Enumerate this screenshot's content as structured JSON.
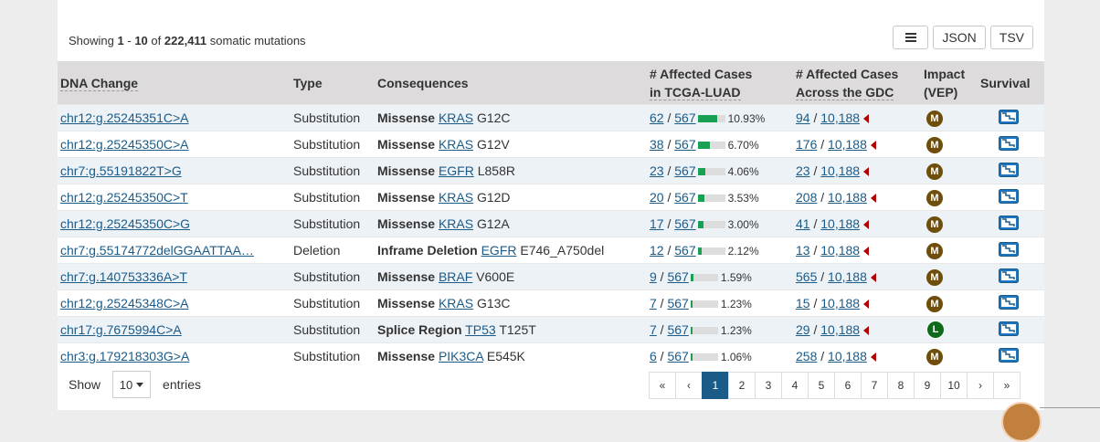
{
  "summary": {
    "prefix": "Showing",
    "from": "1",
    "dash": "-",
    "to": "10",
    "of": "of",
    "total": "222,411",
    "suffix": "somatic mutations"
  },
  "toolbar": {
    "json_label": "JSON",
    "tsv_label": "TSV",
    "menu_icon": "hamburger-icon"
  },
  "table": {
    "headers": {
      "dna_change": "DNA Change",
      "type": "Type",
      "consequences": "Consequences",
      "affected_project_1": "# Affected Cases",
      "affected_project_2": "in TCGA-LUAD",
      "affected_gdc_1": "# Affected Cases",
      "affected_gdc_2": "Across the GDC",
      "impact_1": "Impact",
      "impact_2": "(VEP)",
      "survival": "Survival"
    },
    "rows": [
      {
        "dna": "chr12:g.25245351C>A",
        "type": "Substitution",
        "cons_type": "Missense",
        "gene": "KRAS",
        "aa": "G12C",
        "proj_n": "62",
        "proj_total": "567",
        "proj_frac": 0.1093,
        "proj_pct": "10.93%",
        "gdc_n": "94",
        "gdc_total": "10,188",
        "impact": "M"
      },
      {
        "dna": "chr12:g.25245350C>A",
        "type": "Substitution",
        "cons_type": "Missense",
        "gene": "KRAS",
        "aa": "G12V",
        "proj_n": "38",
        "proj_total": "567",
        "proj_frac": 0.067,
        "proj_pct": "6.70%",
        "gdc_n": "176",
        "gdc_total": "10,188",
        "impact": "M"
      },
      {
        "dna": "chr7:g.55191822T>G",
        "type": "Substitution",
        "cons_type": "Missense",
        "gene": "EGFR",
        "aa": "L858R",
        "proj_n": "23",
        "proj_total": "567",
        "proj_frac": 0.0406,
        "proj_pct": "4.06%",
        "gdc_n": "23",
        "gdc_total": "10,188",
        "impact": "M"
      },
      {
        "dna": "chr12:g.25245350C>T",
        "type": "Substitution",
        "cons_type": "Missense",
        "gene": "KRAS",
        "aa": "G12D",
        "proj_n": "20",
        "proj_total": "567",
        "proj_frac": 0.0353,
        "proj_pct": "3.53%",
        "gdc_n": "208",
        "gdc_total": "10,188",
        "impact": "M"
      },
      {
        "dna": "chr12:g.25245350C>G",
        "type": "Substitution",
        "cons_type": "Missense",
        "gene": "KRAS",
        "aa": "G12A",
        "proj_n": "17",
        "proj_total": "567",
        "proj_frac": 0.03,
        "proj_pct": "3.00%",
        "gdc_n": "41",
        "gdc_total": "10,188",
        "impact": "M"
      },
      {
        "dna": "chr7:g.55174772delGGAATTAA…",
        "type": "Deletion",
        "cons_type": "Inframe Deletion",
        "gene": "EGFR",
        "aa": "E746_A750del",
        "proj_n": "12",
        "proj_total": "567",
        "proj_frac": 0.0212,
        "proj_pct": "2.12%",
        "gdc_n": "13",
        "gdc_total": "10,188",
        "impact": "M"
      },
      {
        "dna": "chr7:g.140753336A>T",
        "type": "Substitution",
        "cons_type": "Missense",
        "gene": "BRAF",
        "aa": "V600E",
        "proj_n": "9",
        "proj_total": "567",
        "proj_frac": 0.0159,
        "proj_pct": "1.59%",
        "gdc_n": "565",
        "gdc_total": "10,188",
        "impact": "M"
      },
      {
        "dna": "chr12:g.25245348C>A",
        "type": "Substitution",
        "cons_type": "Missense",
        "gene": "KRAS",
        "aa": "G13C",
        "proj_n": "7",
        "proj_total": "567",
        "proj_frac": 0.0123,
        "proj_pct": "1.23%",
        "gdc_n": "15",
        "gdc_total": "10,188",
        "impact": "M"
      },
      {
        "dna": "chr17:g.7675994C>A",
        "type": "Substitution",
        "cons_type": "Splice Region",
        "gene": "TP53",
        "aa": "T125T",
        "proj_n": "7",
        "proj_total": "567",
        "proj_frac": 0.0123,
        "proj_pct": "1.23%",
        "gdc_n": "29",
        "gdc_total": "10,188",
        "impact": "L"
      },
      {
        "dna": "chr3:g.179218303G>A",
        "type": "Substitution",
        "cons_type": "Missense",
        "gene": "PIK3CA",
        "aa": "E545K",
        "proj_n": "6",
        "proj_total": "567",
        "proj_frac": 0.0106,
        "proj_pct": "1.06%",
        "gdc_n": "258",
        "gdc_total": "10,188",
        "impact": "M"
      }
    ]
  },
  "footer": {
    "show_label": "Show",
    "page_size": "10",
    "entries_label": "entries"
  },
  "pagination": {
    "first": "«",
    "prev": "‹",
    "pages": [
      "1",
      "2",
      "3",
      "4",
      "5",
      "6",
      "7",
      "8",
      "9",
      "10"
    ],
    "current": "1",
    "next": "›",
    "last": "»"
  },
  "colors": {
    "link": "#1b5b88",
    "impact_M": "#6e4e0a",
    "impact_L": "#0e6b1c",
    "bar_fill": "#1aa055",
    "gdc_arrow": "#b00000",
    "header_bg": "#dddbdb",
    "stripe": "#edf2f7"
  },
  "icons": {
    "survival": "survival-plot-icon",
    "gdc_arrow": "left-triangle-icon"
  }
}
